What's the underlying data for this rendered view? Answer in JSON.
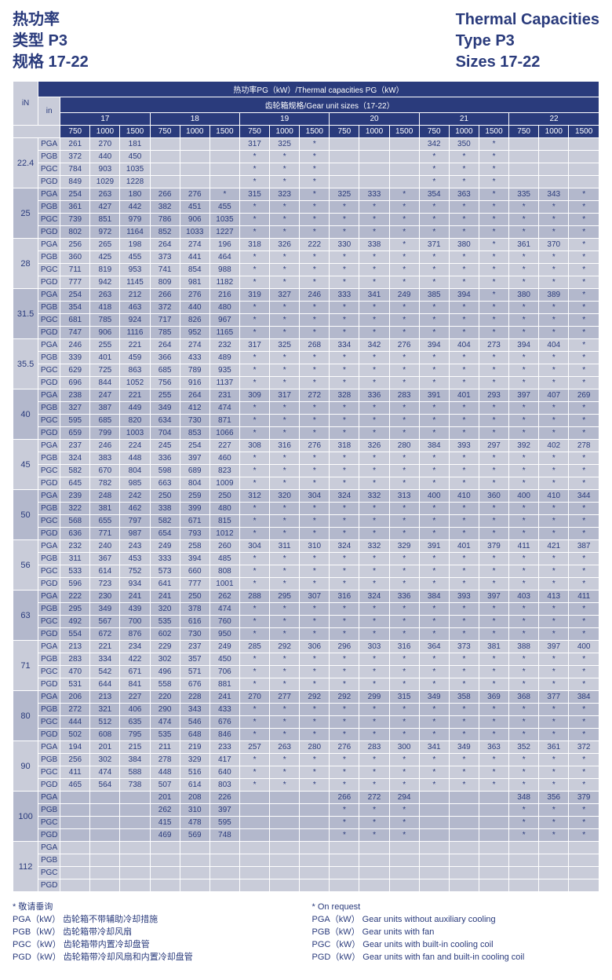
{
  "header": {
    "left": [
      "热功率",
      "类型 P3",
      "规格 17-22"
    ],
    "right": [
      "Thermal Capacities",
      "Type P3",
      "Sizes 17-22"
    ]
  },
  "thead": {
    "title": "热功率PG（kW）/Thermal capacities PG（kW）",
    "sub": "齿轮箱规格/Gear unit sizes（17-22）",
    "inLabel": "iN",
    "inSub": "in",
    "sizes": [
      "17",
      "18",
      "19",
      "20",
      "21",
      "22"
    ],
    "speeds": [
      "750",
      "1000",
      "1500"
    ]
  },
  "ptypes": [
    "PGA",
    "PGB",
    "PGC",
    "PGD"
  ],
  "rows": [
    {
      "in": "22.4",
      "v": [
        [
          "261",
          "270",
          "181",
          "",
          "",
          "",
          "317",
          "325",
          "*",
          "",
          "",
          "",
          "342",
          "350",
          "*",
          "",
          "",
          ""
        ],
        [
          "372",
          "440",
          "450",
          "",
          "",
          "",
          "*",
          "*",
          "*",
          "",
          "",
          "",
          "*",
          "*",
          "*",
          "",
          "",
          ""
        ],
        [
          "784",
          "903",
          "1035",
          "",
          "",
          "",
          "*",
          "*",
          "*",
          "",
          "",
          "",
          "*",
          "*",
          "*",
          "",
          "",
          ""
        ],
        [
          "849",
          "1029",
          "1228",
          "",
          "",
          "",
          "*",
          "*",
          "*",
          "",
          "",
          "",
          "*",
          "*",
          "*",
          "",
          "",
          ""
        ]
      ]
    },
    {
      "in": "25",
      "v": [
        [
          "254",
          "263",
          "180",
          "266",
          "276",
          "*",
          "315",
          "323",
          "*",
          "325",
          "333",
          "*",
          "354",
          "363",
          "*",
          "335",
          "343",
          "*"
        ],
        [
          "361",
          "427",
          "442",
          "382",
          "451",
          "455",
          "*",
          "*",
          "*",
          "*",
          "*",
          "*",
          "*",
          "*",
          "*",
          "*",
          "*",
          "*"
        ],
        [
          "739",
          "851",
          "979",
          "786",
          "906",
          "1035",
          "*",
          "*",
          "*",
          "*",
          "*",
          "*",
          "*",
          "*",
          "*",
          "*",
          "*",
          "*"
        ],
        [
          "802",
          "972",
          "1164",
          "852",
          "1033",
          "1227",
          "*",
          "*",
          "*",
          "*",
          "*",
          "*",
          "*",
          "*",
          "*",
          "*",
          "*",
          "*"
        ]
      ]
    },
    {
      "in": "28",
      "v": [
        [
          "256",
          "265",
          "198",
          "264",
          "274",
          "196",
          "318",
          "326",
          "222",
          "330",
          "338",
          "*",
          "371",
          "380",
          "*",
          "361",
          "370",
          "*"
        ],
        [
          "360",
          "425",
          "455",
          "373",
          "441",
          "464",
          "*",
          "*",
          "*",
          "*",
          "*",
          "*",
          "*",
          "*",
          "*",
          "*",
          "*",
          "*"
        ],
        [
          "711",
          "819",
          "953",
          "741",
          "854",
          "988",
          "*",
          "*",
          "*",
          "*",
          "*",
          "*",
          "*",
          "*",
          "*",
          "*",
          "*",
          "*"
        ],
        [
          "777",
          "942",
          "1145",
          "809",
          "981",
          "1182",
          "*",
          "*",
          "*",
          "*",
          "*",
          "*",
          "*",
          "*",
          "*",
          "*",
          "*",
          "*"
        ]
      ]
    },
    {
      "in": "31.5",
      "v": [
        [
          "254",
          "263",
          "212",
          "266",
          "276",
          "216",
          "319",
          "327",
          "246",
          "333",
          "341",
          "249",
          "385",
          "394",
          "*",
          "380",
          "389",
          "*"
        ],
        [
          "354",
          "418",
          "463",
          "372",
          "440",
          "480",
          "*",
          "*",
          "*",
          "*",
          "*",
          "*",
          "*",
          "*",
          "*",
          "*",
          "*",
          "*"
        ],
        [
          "681",
          "785",
          "924",
          "717",
          "826",
          "967",
          "*",
          "*",
          "*",
          "*",
          "*",
          "*",
          "*",
          "*",
          "*",
          "*",
          "*",
          "*"
        ],
        [
          "747",
          "906",
          "1116",
          "785",
          "952",
          "1165",
          "*",
          "*",
          "*",
          "*",
          "*",
          "*",
          "*",
          "*",
          "*",
          "*",
          "*",
          "*"
        ]
      ]
    },
    {
      "in": "35.5",
      "v": [
        [
          "246",
          "255",
          "221",
          "264",
          "274",
          "232",
          "317",
          "325",
          "268",
          "334",
          "342",
          "276",
          "394",
          "404",
          "273",
          "394",
          "404",
          "*"
        ],
        [
          "339",
          "401",
          "459",
          "366",
          "433",
          "489",
          "*",
          "*",
          "*",
          "*",
          "*",
          "*",
          "*",
          "*",
          "*",
          "*",
          "*",
          "*"
        ],
        [
          "629",
          "725",
          "863",
          "685",
          "789",
          "935",
          "*",
          "*",
          "*",
          "*",
          "*",
          "*",
          "*",
          "*",
          "*",
          "*",
          "*",
          "*"
        ],
        [
          "696",
          "844",
          "1052",
          "756",
          "916",
          "1137",
          "*",
          "*",
          "*",
          "*",
          "*",
          "*",
          "*",
          "*",
          "*",
          "*",
          "*",
          "*"
        ]
      ]
    },
    {
      "in": "40",
      "v": [
        [
          "238",
          "247",
          "221",
          "255",
          "264",
          "231",
          "309",
          "317",
          "272",
          "328",
          "336",
          "283",
          "391",
          "401",
          "293",
          "397",
          "407",
          "269"
        ],
        [
          "327",
          "387",
          "449",
          "349",
          "412",
          "474",
          "*",
          "*",
          "*",
          "*",
          "*",
          "*",
          "*",
          "*",
          "*",
          "*",
          "*",
          "*"
        ],
        [
          "595",
          "685",
          "820",
          "634",
          "730",
          "871",
          "*",
          "*",
          "*",
          "*",
          "*",
          "*",
          "*",
          "*",
          "*",
          "*",
          "*",
          "*"
        ],
        [
          "659",
          "799",
          "1003",
          "704",
          "853",
          "1066",
          "*",
          "*",
          "*",
          "*",
          "*",
          "*",
          "*",
          "*",
          "*",
          "*",
          "*",
          "*"
        ]
      ]
    },
    {
      "in": "45",
      "v": [
        [
          "237",
          "246",
          "224",
          "245",
          "254",
          "227",
          "308",
          "316",
          "276",
          "318",
          "326",
          "280",
          "384",
          "393",
          "297",
          "392",
          "402",
          "278"
        ],
        [
          "324",
          "383",
          "448",
          "336",
          "397",
          "460",
          "*",
          "*",
          "*",
          "*",
          "*",
          "*",
          "*",
          "*",
          "*",
          "*",
          "*",
          "*"
        ],
        [
          "582",
          "670",
          "804",
          "598",
          "689",
          "823",
          "*",
          "*",
          "*",
          "*",
          "*",
          "*",
          "*",
          "*",
          "*",
          "*",
          "*",
          "*"
        ],
        [
          "645",
          "782",
          "985",
          "663",
          "804",
          "1009",
          "*",
          "*",
          "*",
          "*",
          "*",
          "*",
          "*",
          "*",
          "*",
          "*",
          "*",
          "*"
        ]
      ]
    },
    {
      "in": "50",
      "v": [
        [
          "239",
          "248",
          "242",
          "250",
          "259",
          "250",
          "312",
          "320",
          "304",
          "324",
          "332",
          "313",
          "400",
          "410",
          "360",
          "400",
          "410",
          "344"
        ],
        [
          "322",
          "381",
          "462",
          "338",
          "399",
          "480",
          "*",
          "*",
          "*",
          "*",
          "*",
          "*",
          "*",
          "*",
          "*",
          "*",
          "*",
          "*"
        ],
        [
          "568",
          "655",
          "797",
          "582",
          "671",
          "815",
          "*",
          "*",
          "*",
          "*",
          "*",
          "*",
          "*",
          "*",
          "*",
          "*",
          "*",
          "*"
        ],
        [
          "636",
          "771",
          "987",
          "654",
          "793",
          "1012",
          "*",
          "*",
          "*",
          "*",
          "*",
          "*",
          "*",
          "*",
          "*",
          "*",
          "*",
          "*"
        ]
      ]
    },
    {
      "in": "56",
      "v": [
        [
          "232",
          "240",
          "243",
          "249",
          "258",
          "260",
          "304",
          "311",
          "310",
          "324",
          "332",
          "329",
          "391",
          "401",
          "379",
          "411",
          "421",
          "387"
        ],
        [
          "311",
          "367",
          "453",
          "333",
          "394",
          "485",
          "*",
          "*",
          "*",
          "*",
          "*",
          "*",
          "*",
          "*",
          "*",
          "*",
          "*",
          "*"
        ],
        [
          "533",
          "614",
          "752",
          "573",
          "660",
          "808",
          "*",
          "*",
          "*",
          "*",
          "*",
          "*",
          "*",
          "*",
          "*",
          "*",
          "*",
          "*"
        ],
        [
          "596",
          "723",
          "934",
          "641",
          "777",
          "1001",
          "*",
          "*",
          "*",
          "*",
          "*",
          "*",
          "*",
          "*",
          "*",
          "*",
          "*",
          "*"
        ]
      ]
    },
    {
      "in": "63",
      "v": [
        [
          "222",
          "230",
          "241",
          "241",
          "250",
          "262",
          "288",
          "295",
          "307",
          "316",
          "324",
          "336",
          "384",
          "393",
          "397",
          "403",
          "413",
          "411"
        ],
        [
          "295",
          "349",
          "439",
          "320",
          "378",
          "474",
          "*",
          "*",
          "*",
          "*",
          "*",
          "*",
          "*",
          "*",
          "*",
          "*",
          "*",
          "*"
        ],
        [
          "492",
          "567",
          "700",
          "535",
          "616",
          "760",
          "*",
          "*",
          "*",
          "*",
          "*",
          "*",
          "*",
          "*",
          "*",
          "*",
          "*",
          "*"
        ],
        [
          "554",
          "672",
          "876",
          "602",
          "730",
          "950",
          "*",
          "*",
          "*",
          "*",
          "*",
          "*",
          "*",
          "*",
          "*",
          "*",
          "*",
          "*"
        ]
      ]
    },
    {
      "in": "71",
      "v": [
        [
          "213",
          "221",
          "234",
          "229",
          "237",
          "249",
          "285",
          "292",
          "306",
          "296",
          "303",
          "316",
          "364",
          "373",
          "381",
          "388",
          "397",
          "400"
        ],
        [
          "283",
          "334",
          "422",
          "302",
          "357",
          "450",
          "*",
          "*",
          "*",
          "*",
          "*",
          "*",
          "*",
          "*",
          "*",
          "*",
          "*",
          "*"
        ],
        [
          "470",
          "542",
          "671",
          "496",
          "571",
          "706",
          "*",
          "*",
          "*",
          "*",
          "*",
          "*",
          "*",
          "*",
          "*",
          "*",
          "*",
          "*"
        ],
        [
          "531",
          "644",
          "841",
          "558",
          "676",
          "881",
          "*",
          "*",
          "*",
          "*",
          "*",
          "*",
          "*",
          "*",
          "*",
          "*",
          "*",
          "*"
        ]
      ]
    },
    {
      "in": "80",
      "v": [
        [
          "206",
          "213",
          "227",
          "220",
          "228",
          "241",
          "270",
          "277",
          "292",
          "292",
          "299",
          "315",
          "349",
          "358",
          "369",
          "368",
          "377",
          "384"
        ],
        [
          "272",
          "321",
          "406",
          "290",
          "343",
          "433",
          "*",
          "*",
          "*",
          "*",
          "*",
          "*",
          "*",
          "*",
          "*",
          "*",
          "*",
          "*"
        ],
        [
          "444",
          "512",
          "635",
          "474",
          "546",
          "676",
          "*",
          "*",
          "*",
          "*",
          "*",
          "*",
          "*",
          "*",
          "*",
          "*",
          "*",
          "*"
        ],
        [
          "502",
          "608",
          "795",
          "535",
          "648",
          "846",
          "*",
          "*",
          "*",
          "*",
          "*",
          "*",
          "*",
          "*",
          "*",
          "*",
          "*",
          "*"
        ]
      ]
    },
    {
      "in": "90",
      "v": [
        [
          "194",
          "201",
          "215",
          "211",
          "219",
          "233",
          "257",
          "263",
          "280",
          "276",
          "283",
          "300",
          "341",
          "349",
          "363",
          "352",
          "361",
          "372"
        ],
        [
          "256",
          "302",
          "384",
          "278",
          "329",
          "417",
          "*",
          "*",
          "*",
          "*",
          "*",
          "*",
          "*",
          "*",
          "*",
          "*",
          "*",
          "*"
        ],
        [
          "411",
          "474",
          "588",
          "448",
          "516",
          "640",
          "*",
          "*",
          "*",
          "*",
          "*",
          "*",
          "*",
          "*",
          "*",
          "*",
          "*",
          "*"
        ],
        [
          "465",
          "564",
          "738",
          "507",
          "614",
          "803",
          "*",
          "*",
          "*",
          "*",
          "*",
          "*",
          "*",
          "*",
          "*",
          "*",
          "*",
          "*"
        ]
      ]
    },
    {
      "in": "100",
      "v": [
        [
          "",
          "",
          "",
          "201",
          "208",
          "226",
          "",
          "",
          "",
          "266",
          "272",
          "294",
          "",
          "",
          "",
          "348",
          "356",
          "379"
        ],
        [
          "",
          "",
          "",
          "262",
          "310",
          "397",
          "",
          "",
          "",
          "*",
          "*",
          "*",
          "",
          "",
          "",
          "*",
          "*",
          "*"
        ],
        [
          "",
          "",
          "",
          "415",
          "478",
          "595",
          "",
          "",
          "",
          "*",
          "*",
          "*",
          "",
          "",
          "",
          "*",
          "*",
          "*"
        ],
        [
          "",
          "",
          "",
          "469",
          "569",
          "748",
          "",
          "",
          "",
          "*",
          "*",
          "*",
          "",
          "",
          "",
          "*",
          "*",
          "*"
        ]
      ]
    },
    {
      "in": "112",
      "v": [
        [
          "",
          "",
          "",
          "",
          "",
          "",
          "",
          "",
          "",
          "",
          "",
          "",
          "",
          "",
          "",
          "",
          "",
          ""
        ],
        [
          "",
          "",
          "",
          "",
          "",
          "",
          "",
          "",
          "",
          "",
          "",
          "",
          "",
          "",
          "",
          "",
          "",
          ""
        ],
        [
          "",
          "",
          "",
          "",
          "",
          "",
          "",
          "",
          "",
          "",
          "",
          "",
          "",
          "",
          "",
          "",
          "",
          ""
        ],
        [
          "",
          "",
          "",
          "",
          "",
          "",
          "",
          "",
          "",
          "",
          "",
          "",
          "",
          "",
          "",
          "",
          "",
          ""
        ]
      ]
    }
  ],
  "footer": {
    "left": [
      "* 敬请垂询",
      "PGA（kW） 齿轮箱不带辅助冷却措施",
      "PGB（kW） 齿轮箱带冷却风扇",
      "PGC（kW） 齿轮箱带内置冷却盘管",
      "PGD（kW） 齿轮箱带冷却风扇和内置冷却盘管"
    ],
    "right": [
      "* On request",
      "PGA（kW） Gear units without auxiliary cooling",
      "PGB（kW） Gear units with fan",
      "PGC（kW） Gear units with built-in cooling coil",
      "PGD（kW） Gear units with fan and built-in cooling coil"
    ]
  }
}
